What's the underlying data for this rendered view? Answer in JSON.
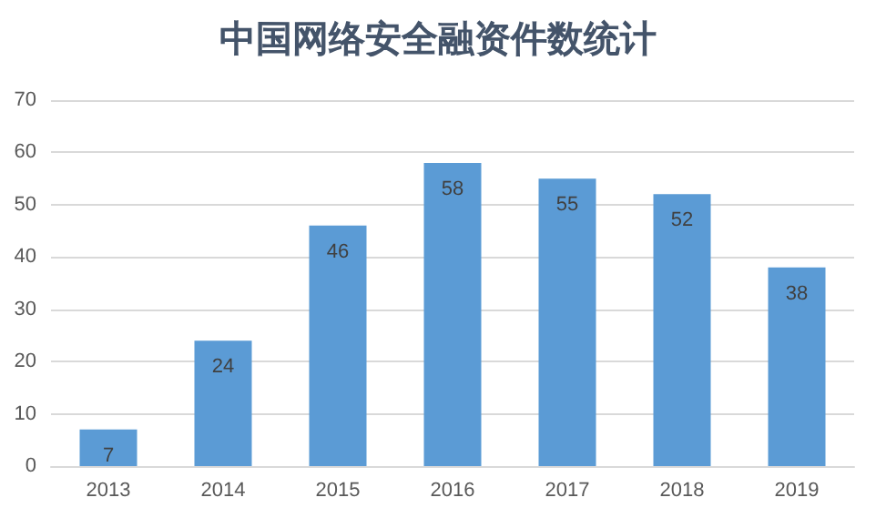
{
  "chart_data": {
    "type": "bar",
    "title": "中国网络安全融资件数统计",
    "categories": [
      "2013",
      "2014",
      "2015",
      "2016",
      "2017",
      "2018",
      "2019"
    ],
    "values": [
      7,
      24,
      46,
      58,
      55,
      52,
      38
    ],
    "color": "#5b9bd5",
    "ylim": [
      0,
      70
    ],
    "yticks": [
      0,
      10,
      20,
      30,
      40,
      50,
      60,
      70
    ],
    "grid": "y",
    "data_labels": true
  }
}
